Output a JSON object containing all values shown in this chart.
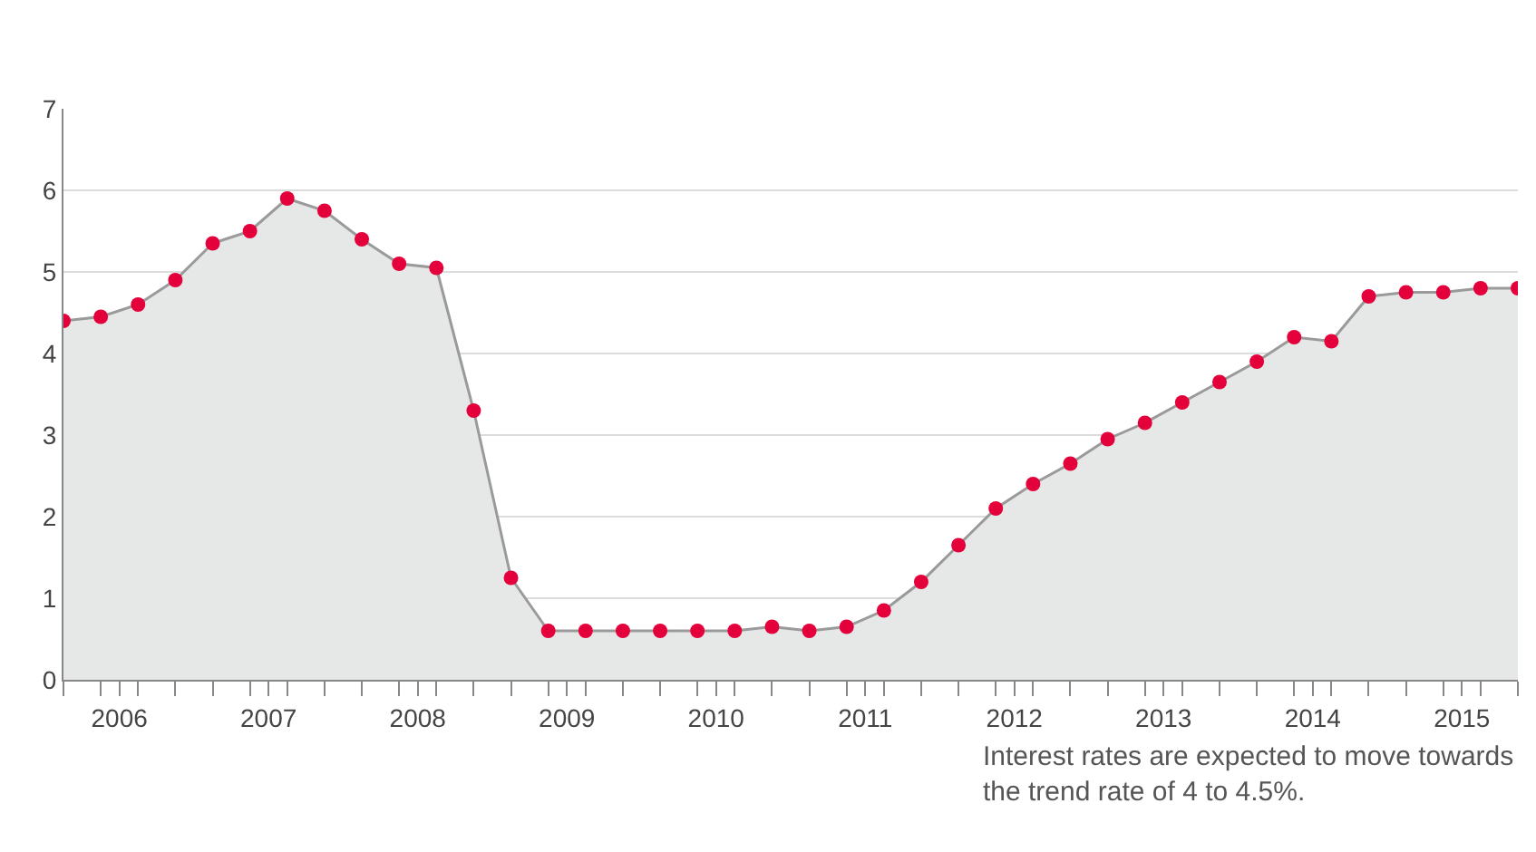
{
  "chart_data": {
    "type": "area",
    "x": [
      2006.125,
      2006.375,
      2006.625,
      2006.875,
      2007.125,
      2007.375,
      2007.625,
      2007.875,
      2008.125,
      2008.375,
      2008.625,
      2008.875,
      2009.125,
      2009.375,
      2009.625,
      2009.875,
      2010.125,
      2010.375,
      2010.625,
      2010.875,
      2011.125,
      2011.375,
      2011.625,
      2011.875,
      2012.125,
      2012.375,
      2012.625,
      2012.875,
      2013.125,
      2013.375,
      2013.625,
      2013.875,
      2014.125,
      2014.375,
      2014.625,
      2014.875,
      2015.125,
      2015.375,
      2015.625,
      2015.875
    ],
    "series": [
      {
        "color": "#e4003a",
        "values": [
          4.4,
          4.45,
          4.6,
          4.9,
          5.35,
          5.5,
          5.9,
          5.75,
          5.4,
          5.1,
          5.05,
          3.3,
          1.25,
          0.6,
          0.6,
          0.6,
          0.6,
          0.6,
          0.6,
          0.65,
          0.6,
          0.65,
          0.85,
          1.2,
          1.65,
          2.1,
          2.4,
          2.65,
          2.95,
          3.15,
          3.4,
          3.65,
          3.9,
          4.2,
          4.15,
          4.7,
          4.75,
          4.75,
          4.8,
          4.8
        ]
      }
    ],
    "xlim": [
      2006.125,
      2015.875
    ],
    "xticks": [
      {
        "value": 2006.125,
        "label": null
      },
      {
        "value": 2006.375,
        "label": null
      },
      {
        "value": 2006.5,
        "label": "2006"
      },
      {
        "value": 2006.625,
        "label": null
      },
      {
        "value": 2006.875,
        "label": null
      },
      {
        "value": 2007.125,
        "label": null
      },
      {
        "value": 2007.375,
        "label": null
      },
      {
        "value": 2007.5,
        "label": "2007"
      },
      {
        "value": 2007.625,
        "label": null
      },
      {
        "value": 2007.875,
        "label": null
      },
      {
        "value": 2008.125,
        "label": null
      },
      {
        "value": 2008.375,
        "label": null
      },
      {
        "value": 2008.5,
        "label": "2008"
      },
      {
        "value": 2008.625,
        "label": null
      },
      {
        "value": 2008.875,
        "label": null
      },
      {
        "value": 2009.125,
        "label": null
      },
      {
        "value": 2009.375,
        "label": null
      },
      {
        "value": 2009.5,
        "label": "2009"
      },
      {
        "value": 2009.625,
        "label": null
      },
      {
        "value": 2009.875,
        "label": null
      },
      {
        "value": 2010.125,
        "label": null
      },
      {
        "value": 2010.375,
        "label": null
      },
      {
        "value": 2010.5,
        "label": "2010"
      },
      {
        "value": 2010.625,
        "label": null
      },
      {
        "value": 2010.875,
        "label": null
      },
      {
        "value": 2011.125,
        "label": null
      },
      {
        "value": 2011.375,
        "label": null
      },
      {
        "value": 2011.5,
        "label": "2011"
      },
      {
        "value": 2011.625,
        "label": null
      },
      {
        "value": 2011.875,
        "label": null
      },
      {
        "value": 2012.125,
        "label": null
      },
      {
        "value": 2012.375,
        "label": null
      },
      {
        "value": 2012.5,
        "label": "2012"
      },
      {
        "value": 2012.625,
        "label": null
      },
      {
        "value": 2012.875,
        "label": null
      },
      {
        "value": 2013.125,
        "label": null
      },
      {
        "value": 2013.375,
        "label": null
      },
      {
        "value": 2013.5,
        "label": "2013"
      },
      {
        "value": 2013.625,
        "label": null
      },
      {
        "value": 2013.875,
        "label": null
      },
      {
        "value": 2014.125,
        "label": null
      },
      {
        "value": 2014.375,
        "label": null
      },
      {
        "value": 2014.5,
        "label": "2014"
      },
      {
        "value": 2014.625,
        "label": null
      },
      {
        "value": 2014.875,
        "label": null
      },
      {
        "value": 2015.125,
        "label": null
      },
      {
        "value": 2015.375,
        "label": null
      },
      {
        "value": 2015.5,
        "label": "2015"
      },
      {
        "value": 2015.625,
        "label": null
      },
      {
        "value": 2015.875,
        "label": null
      }
    ],
    "ylim": [
      0,
      7
    ],
    "yticks": [
      0,
      1,
      2,
      3,
      4,
      5,
      6,
      7
    ],
    "grid": "y",
    "marker": "circle",
    "line_style": "solid",
    "annotations": [
      "Interest rates are expected to move towards\nthe trend rate of 4 to 4.5%."
    ]
  }
}
